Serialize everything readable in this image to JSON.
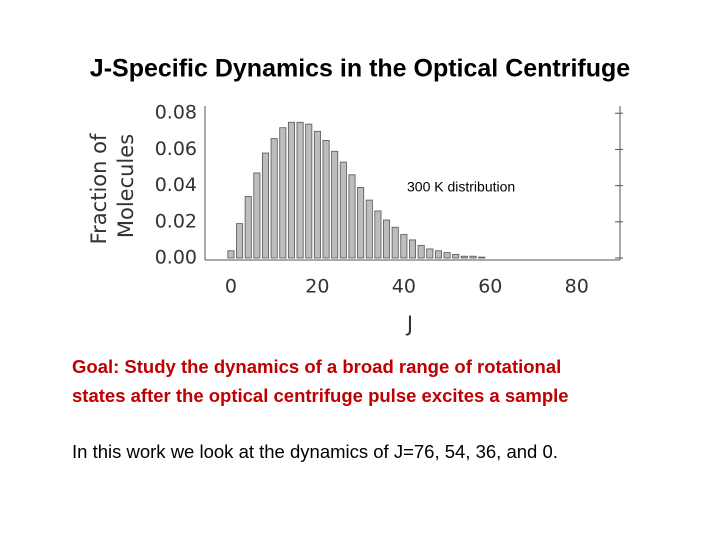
{
  "header": {
    "title": "J-Specific Dynamics in the Optical Centrifuge"
  },
  "chart_data": {
    "type": "bar",
    "xlabel": "J",
    "ylabel": [
      "Fraction of",
      "Molecules"
    ],
    "annotation": "300 K distribution",
    "x": [
      0,
      2,
      4,
      6,
      8,
      10,
      12,
      14,
      16,
      18,
      20,
      22,
      24,
      26,
      28,
      30,
      32,
      34,
      36,
      38,
      40,
      42,
      44,
      46,
      48,
      50,
      52,
      54,
      56,
      58
    ],
    "values": [
      0.004,
      0.019,
      0.034,
      0.047,
      0.058,
      0.066,
      0.072,
      0.075,
      0.075,
      0.074,
      0.07,
      0.065,
      0.059,
      0.053,
      0.046,
      0.039,
      0.032,
      0.026,
      0.021,
      0.017,
      0.013,
      0.01,
      0.007,
      0.005,
      0.004,
      0.003,
      0.002,
      0.001,
      0.001,
      0.0005
    ],
    "color": "#bdbdbd",
    "xlim": [
      -6,
      90
    ],
    "xticks": [
      0,
      20,
      40,
      60,
      80
    ],
    "ylim": [
      0,
      0.084
    ],
    "yticks": [
      {
        "value": 0,
        "label": "0.00"
      },
      {
        "value": 0.02,
        "label": "0.02"
      },
      {
        "value": 0.04,
        "label": "0.04"
      },
      {
        "value": 0.06,
        "label": "0.06"
      },
      {
        "value": 0.08,
        "label": "0.08"
      }
    ]
  },
  "body": {
    "goal": [
      "Goal:  Study the dynamics of a broad range of rotational",
      "states after the optical centrifuge pulse excites a sample"
    ],
    "note": "In this work we look at the dynamics of J=76, 54, 36, and 0."
  }
}
